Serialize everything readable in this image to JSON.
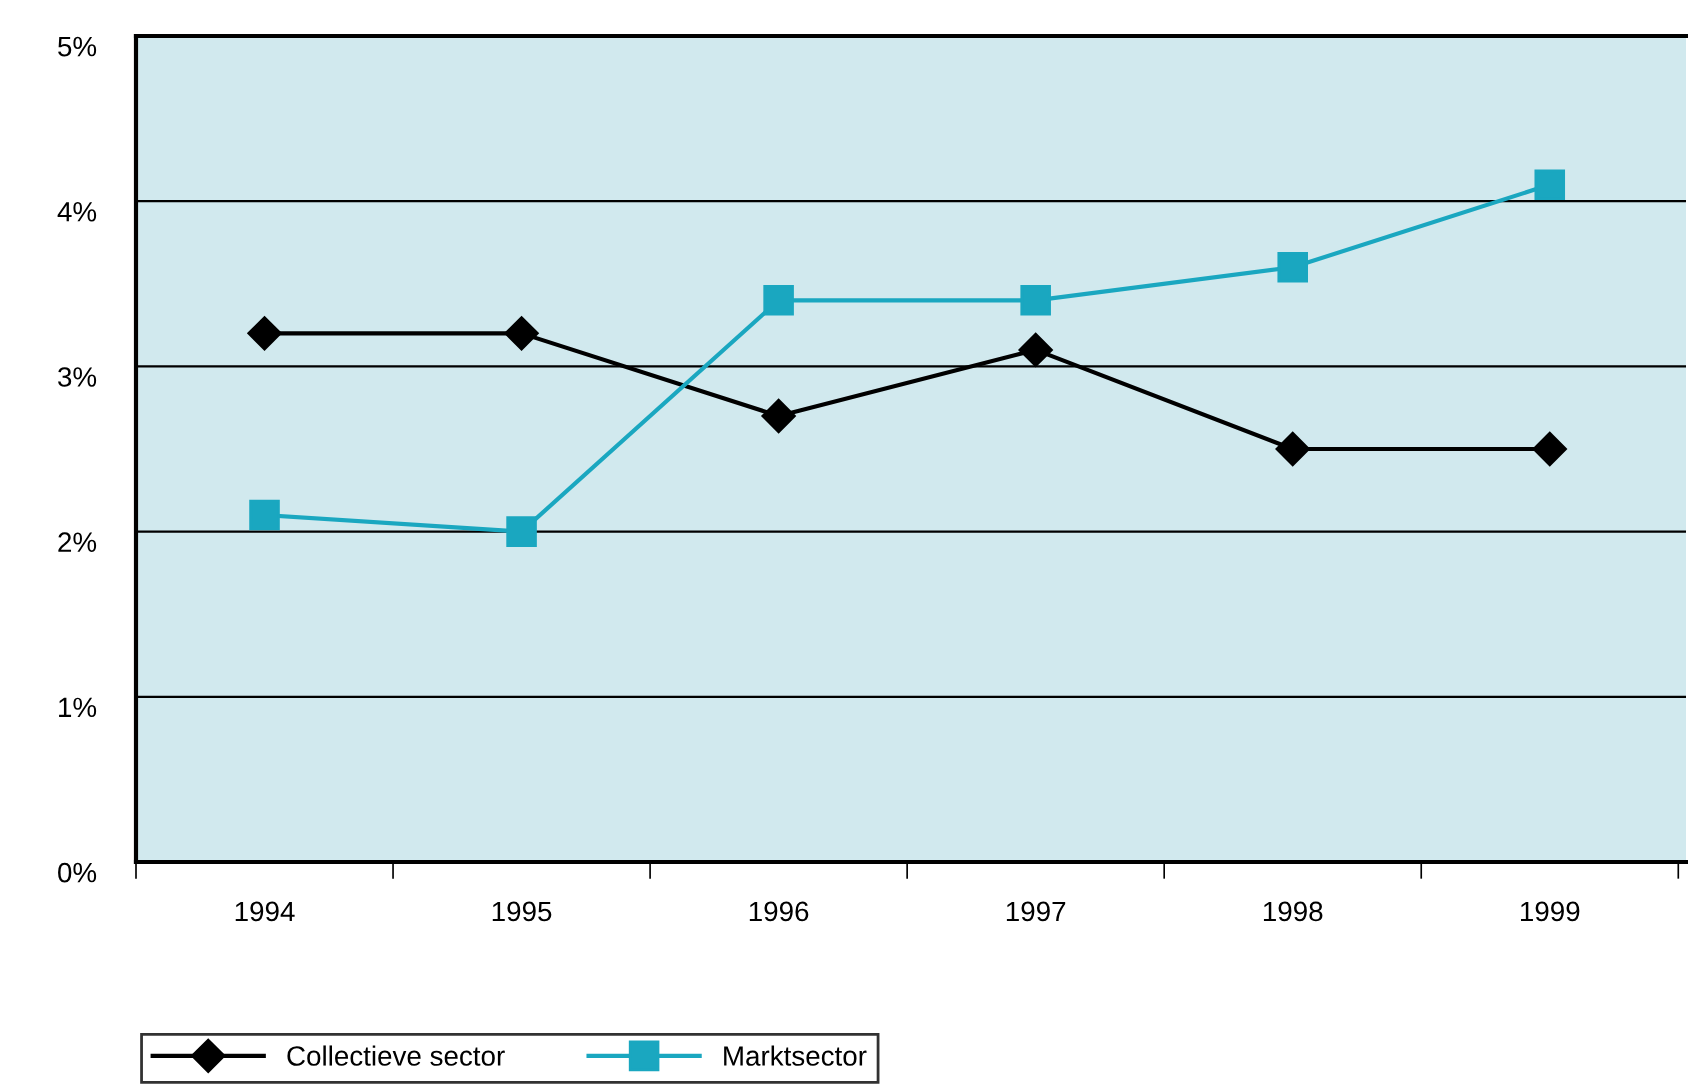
{
  "chart_data": {
    "type": "line",
    "categories": [
      "1994",
      "1995",
      "1996",
      "1997",
      "1998",
      "1999"
    ],
    "series": [
      {
        "name": "Collectieve sector",
        "color": "#000000",
        "marker": "diamond",
        "values": [
          3.2,
          3.2,
          2.7,
          3.1,
          2.5,
          2.5
        ]
      },
      {
        "name": "Marktsector",
        "color": "#1aa7c0",
        "marker": "square",
        "values": [
          2.1,
          2.0,
          3.4,
          3.4,
          3.6,
          4.1
        ]
      }
    ],
    "ylim": [
      0,
      5
    ],
    "yticks": [
      {
        "value": 0,
        "label": "0%"
      },
      {
        "value": 1,
        "label": "1%"
      },
      {
        "value": 2,
        "label": "2%"
      },
      {
        "value": 3,
        "label": "3%"
      },
      {
        "value": 4,
        "label": "4%"
      },
      {
        "value": 5,
        "label": "5%"
      }
    ],
    "grid": "y",
    "legend": "bottom left",
    "line_style": "solid"
  }
}
